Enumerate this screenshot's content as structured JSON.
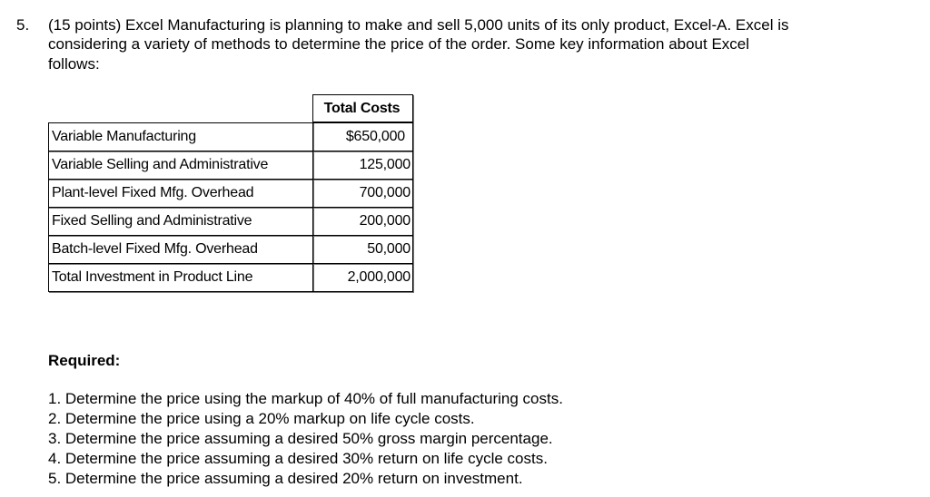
{
  "question": {
    "number": "5.",
    "lines": [
      "(15 points) Excel Manufacturing is planning to make and sell 5,000 units of its only product, Excel-A. Excel is",
      "considering a variety of methods to determine the price of the order. Some key information about Excel",
      "follows:"
    ]
  },
  "table": {
    "header": "Total Costs",
    "rows": [
      [
        "Variable Manufacturing",
        "$650,000"
      ],
      [
        "Variable Selling and Administrative",
        "125,000"
      ],
      [
        "Plant-level Fixed Mfg. Overhead",
        "700,000"
      ],
      [
        "Fixed Selling and Administrative",
        "200,000"
      ],
      [
        "Batch-level Fixed Mfg. Overhead",
        "50,000"
      ],
      [
        "Total Investment in Product Line",
        "2,000,000"
      ]
    ]
  },
  "required": {
    "label": "Required:",
    "items": [
      "1. Determine the price using the markup of 40% of full manufacturing costs.",
      "2. Determine the price using a 20% markup on life cycle costs.",
      "3. Determine the price assuming a desired 50% gross margin percentage.",
      "4. Determine the price assuming a desired 30% return on life cycle costs.",
      "5. Determine the price assuming a desired 20% return on investment."
    ]
  }
}
